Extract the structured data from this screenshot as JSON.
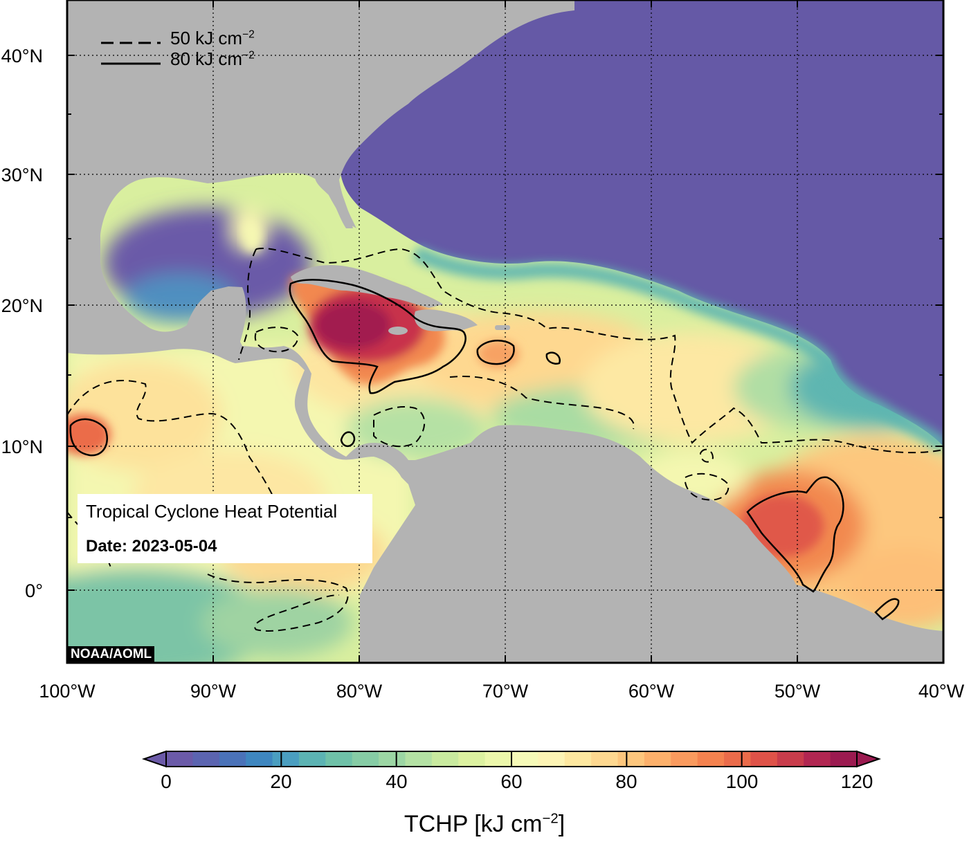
{
  "title": "Tropical Cyclone Heat Potential",
  "date": "Date: 2023-05-04",
  "credit": "NOAA/AOML",
  "contour_legend": [
    {
      "style": "dashed",
      "text": "50 kJ cm",
      "exp": "−2",
      "value": 50
    },
    {
      "style": "solid",
      "text": "80 kJ cm",
      "exp": "−2",
      "value": 80
    }
  ],
  "lat_ticks": [
    {
      "text": "40°N",
      "value": 40
    },
    {
      "text": "30°N",
      "value": 30
    },
    {
      "text": "20°N",
      "value": 20
    },
    {
      "text": "10°N",
      "value": 10
    },
    {
      "text": "0°",
      "value": 0
    }
  ],
  "lon_ticks": [
    {
      "text": "100°W",
      "value": -100
    },
    {
      "text": "90°W",
      "value": -90
    },
    {
      "text": "80°W",
      "value": -80
    },
    {
      "text": "70°W",
      "value": -70
    },
    {
      "text": "60°W",
      "value": -60
    },
    {
      "text": "50°W",
      "value": -50
    },
    {
      "text": "40°W",
      "value": -40
    }
  ],
  "colorbar": {
    "label": "TCHP [kJ cm",
    "label_exp": "−2",
    "label_end": "]",
    "range": [
      0,
      120
    ],
    "ticks": [
      "0",
      "20",
      "40",
      "60",
      "80",
      "100",
      "120"
    ],
    "colors": [
      "#6b5aa8",
      "#5b64b0",
      "#4a72b8",
      "#3e86bf",
      "#4a9ec0",
      "#5cb3b3",
      "#6fc1a8",
      "#86cca5",
      "#9cd6a4",
      "#b4e1a4",
      "#c9ea9f",
      "#dcf1a0",
      "#ecf7ab",
      "#f6fab8",
      "#fdf4b5",
      "#fee8a0",
      "#fed890",
      "#fdc67d",
      "#fcb06b",
      "#f99a5e",
      "#f4824f",
      "#ea6b4a",
      "#de5248",
      "#c83c4b",
      "#b12651",
      "#9b1a50"
    ]
  },
  "colors": {
    "land": "#b3b3b3",
    "cold_ocean": "#6559a6",
    "ocean_mid": "#c9ea9f"
  }
}
